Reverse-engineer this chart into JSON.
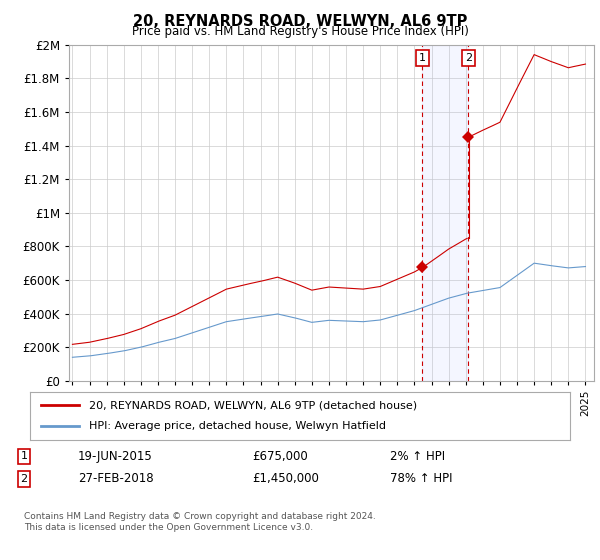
{
  "title": "20, REYNARDS ROAD, WELWYN, AL6 9TP",
  "subtitle": "Price paid vs. HM Land Registry's House Price Index (HPI)",
  "footnote": "Contains HM Land Registry data © Crown copyright and database right 2024.\nThis data is licensed under the Open Government Licence v3.0.",
  "legend_line1": "20, REYNARDS ROAD, WELWYN, AL6 9TP (detached house)",
  "legend_line2": "HPI: Average price, detached house, Welwyn Hatfield",
  "transaction1_label": "1",
  "transaction1_date": "19-JUN-2015",
  "transaction1_price": "£675,000",
  "transaction1_hpi": "2% ↑ HPI",
  "transaction2_label": "2",
  "transaction2_date": "27-FEB-2018",
  "transaction2_price": "£1,450,000",
  "transaction2_hpi": "78% ↑ HPI",
  "hpi_color": "#6699cc",
  "price_color": "#cc0000",
  "marker1_x": 2015.47,
  "marker1_y": 675000,
  "marker2_x": 2018.15,
  "marker2_y": 1450000,
  "shade_xmin": 2015.47,
  "shade_xmax": 2018.15,
  "ylim": [
    0,
    2000000
  ],
  "xlim": [
    1994.8,
    2025.5
  ]
}
